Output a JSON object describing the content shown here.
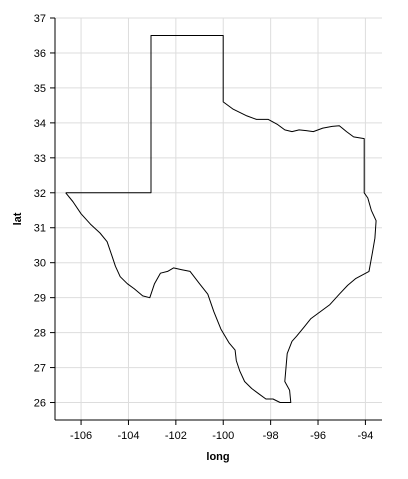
{
  "chart_data": {
    "type": "line",
    "xlabel": "long",
    "ylabel": "lat",
    "xlim": [
      -107.1,
      -93.3
    ],
    "ylim": [
      25.5,
      37
    ],
    "x_ticks": [
      -106,
      -104,
      -102,
      -100,
      -98,
      -96,
      -94
    ],
    "y_ticks": [
      26,
      27,
      28,
      29,
      30,
      31,
      32,
      33,
      34,
      35,
      36,
      37
    ],
    "x_tick_labels": [
      "-106",
      "-104",
      "-102",
      "-100",
      "-98",
      "-96",
      "-94"
    ],
    "y_tick_labels": [
      "26",
      "27",
      "28",
      "29",
      "30",
      "31",
      "32",
      "33",
      "34",
      "35",
      "36",
      "37"
    ],
    "grid": true,
    "series": [
      {
        "points": [
          [
            -106.65,
            32.0
          ],
          [
            -103.05,
            32.0
          ],
          [
            -103.05,
            36.5
          ],
          [
            -100.0,
            36.5
          ],
          [
            -100.0,
            34.6
          ],
          [
            -99.6,
            34.4
          ],
          [
            -99.3,
            34.3
          ],
          [
            -99.0,
            34.2
          ],
          [
            -98.6,
            34.1
          ],
          [
            -98.1,
            34.1
          ],
          [
            -97.7,
            33.95
          ],
          [
            -97.4,
            33.8
          ],
          [
            -97.1,
            33.75
          ],
          [
            -96.8,
            33.8
          ],
          [
            -96.5,
            33.78
          ],
          [
            -96.2,
            33.75
          ],
          [
            -95.8,
            33.85
          ],
          [
            -95.4,
            33.9
          ],
          [
            -95.1,
            33.92
          ],
          [
            -94.8,
            33.75
          ],
          [
            -94.5,
            33.6
          ],
          [
            -94.05,
            33.55
          ],
          [
            -94.05,
            32.0
          ],
          [
            -93.9,
            31.85
          ],
          [
            -93.75,
            31.5
          ],
          [
            -93.55,
            31.2
          ],
          [
            -93.6,
            30.7
          ],
          [
            -93.7,
            30.3
          ],
          [
            -93.85,
            29.75
          ],
          [
            -94.4,
            29.55
          ],
          [
            -94.75,
            29.35
          ],
          [
            -95.1,
            29.1
          ],
          [
            -95.5,
            28.8
          ],
          [
            -95.9,
            28.6
          ],
          [
            -96.3,
            28.4
          ],
          [
            -96.6,
            28.15
          ],
          [
            -96.9,
            27.9
          ],
          [
            -97.1,
            27.75
          ],
          [
            -97.3,
            27.4
          ],
          [
            -97.35,
            27.0
          ],
          [
            -97.4,
            26.6
          ],
          [
            -97.2,
            26.35
          ],
          [
            -97.15,
            26.0
          ],
          [
            -97.6,
            26.0
          ],
          [
            -97.9,
            26.1
          ],
          [
            -98.2,
            26.1
          ],
          [
            -98.5,
            26.25
          ],
          [
            -98.8,
            26.4
          ],
          [
            -99.1,
            26.6
          ],
          [
            -99.3,
            26.9
          ],
          [
            -99.45,
            27.2
          ],
          [
            -99.5,
            27.5
          ],
          [
            -99.75,
            27.7
          ],
          [
            -100.1,
            28.1
          ],
          [
            -100.4,
            28.6
          ],
          [
            -100.65,
            29.1
          ],
          [
            -101.0,
            29.4
          ],
          [
            -101.4,
            29.75
          ],
          [
            -101.75,
            29.8
          ],
          [
            -102.1,
            29.85
          ],
          [
            -102.35,
            29.75
          ],
          [
            -102.65,
            29.7
          ],
          [
            -102.9,
            29.4
          ],
          [
            -103.1,
            29.0
          ],
          [
            -103.4,
            29.05
          ],
          [
            -103.75,
            29.25
          ],
          [
            -104.05,
            29.4
          ],
          [
            -104.35,
            29.6
          ],
          [
            -104.55,
            29.9
          ],
          [
            -104.7,
            30.2
          ],
          [
            -104.9,
            30.6
          ],
          [
            -105.2,
            30.85
          ],
          [
            -105.6,
            31.1
          ],
          [
            -106.0,
            31.4
          ],
          [
            -106.35,
            31.75
          ],
          [
            -106.65,
            32.0
          ]
        ]
      }
    ]
  }
}
